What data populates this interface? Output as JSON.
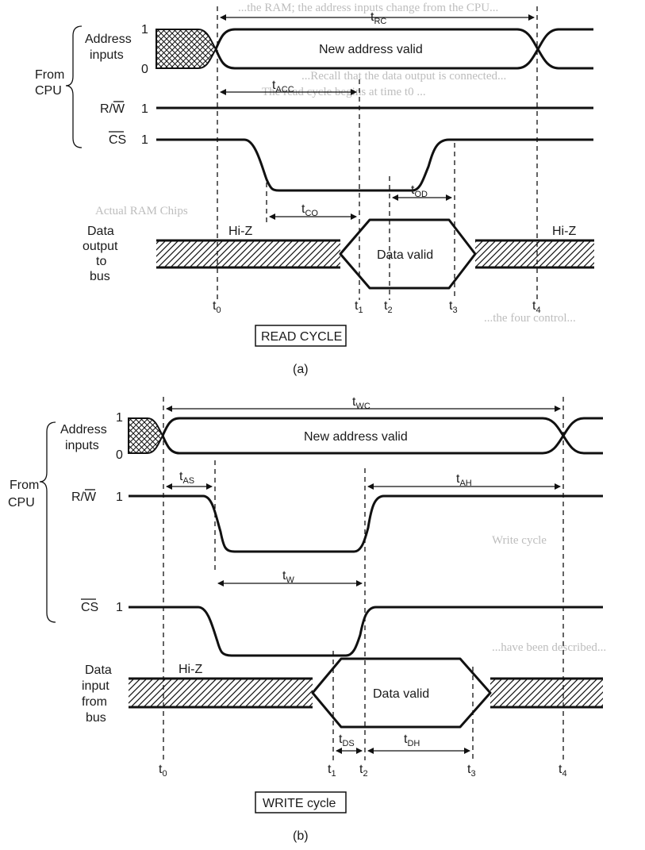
{
  "read": {
    "from_cpu_line1": "From",
    "from_cpu_line2": "CPU",
    "address_inputs_line1": "Address",
    "address_inputs_line2": "inputs",
    "level_1": "1",
    "level_0": "0",
    "rw_label": "R/W",
    "rw_level": "1",
    "cs_label": "CS",
    "cs_level": "1",
    "new_address_valid": "New address valid",
    "data_output_line1": "Data",
    "data_output_line2": "output",
    "data_output_line3": "to",
    "data_output_line4": "bus",
    "hiz_left": "Hi-Z",
    "hiz_right": "Hi-Z",
    "data_valid": "Data valid",
    "t_rc": "RC",
    "t_acc": "ACC",
    "t_od": "OD",
    "t_co": "CO",
    "t0": "0",
    "t1": "1",
    "t2": "2",
    "t3": "3",
    "t4": "4",
    "cycle_label": "READ CYCLE",
    "caption": "(a)"
  },
  "write": {
    "from_cpu_line1": "From",
    "from_cpu_line2": "CPU",
    "address_inputs_line1": "Address",
    "address_inputs_line2": "inputs",
    "level_1": "1",
    "level_0": "0",
    "rw_label": "R/W",
    "rw_level": "1",
    "cs_label": "CS",
    "cs_level": "1",
    "new_address_valid": "New address valid",
    "data_input_line1": "Data",
    "data_input_line2": "input",
    "data_input_line3": "from",
    "data_input_line4": "bus",
    "hiz": "Hi-Z",
    "data_valid": "Data valid",
    "t_wc": "WC",
    "t_as": "AS",
    "t_ah": "AH",
    "t_w": "W",
    "t_ds": "DS",
    "t_dh": "DH",
    "t0": "0",
    "t1": "1",
    "t2": "2",
    "t3": "3",
    "t4": "4",
    "cycle_label": "WRITE cycle",
    "caption": "(b)"
  },
  "colors": {
    "ink": "#111111",
    "ghost_text": "#bdbdbd",
    "paper": "#ffffff"
  }
}
